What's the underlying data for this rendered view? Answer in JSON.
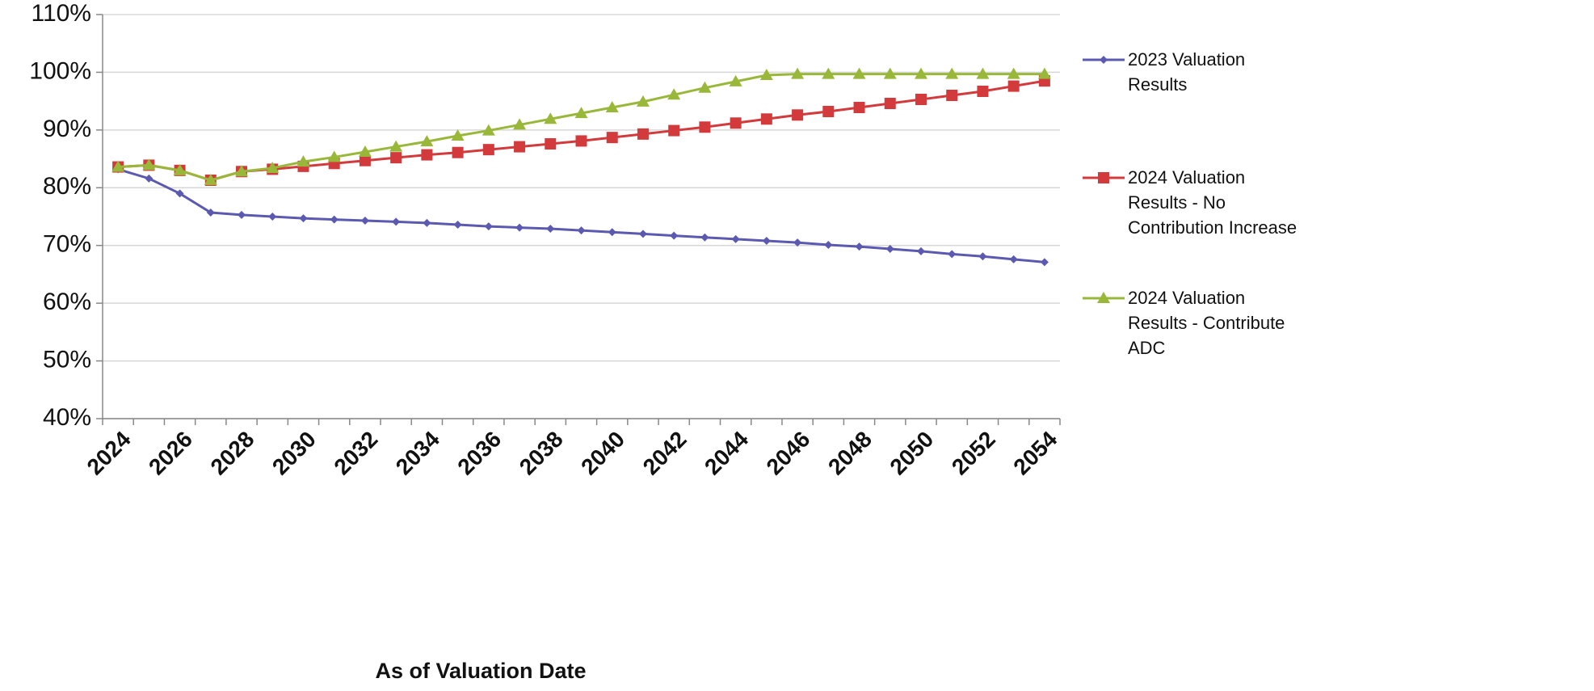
{
  "chart_data": {
    "type": "line",
    "x_label": "As of Valuation Date",
    "categories": [
      "2024",
      null,
      "2026",
      null,
      "2028",
      null,
      "2030",
      null,
      "2032",
      null,
      "2034",
      null,
      "2036",
      null,
      "2038",
      null,
      "2040",
      null,
      "2042",
      null,
      "2044",
      null,
      "2046",
      null,
      "2048",
      null,
      "2050",
      null,
      "2052",
      null,
      "2054"
    ],
    "series": [
      {
        "name": "2023 Valuation Results",
        "color": "#5b59b0",
        "marker": "diamond",
        "values": [
          83.2,
          81.6,
          79,
          75.7,
          75.3,
          75.0,
          74.7,
          74.5,
          74.3,
          74.1,
          73.9,
          73.6,
          73.3,
          73.1,
          72.9,
          72.6,
          72.3,
          72.0,
          71.7,
          71.4,
          71.1,
          70.8,
          70.5,
          70.1,
          69.8,
          69.4,
          69.0,
          68.5,
          68.1,
          67.6,
          67.1
        ]
      },
      {
        "name": "2024 Valuation Results - No Contribution Increase",
        "color": "#d23a3c",
        "marker": "square",
        "values": [
          83.6,
          83.9,
          83.0,
          81.3,
          82.8,
          83.2,
          83.7,
          84.2,
          84.7,
          85.2,
          85.7,
          86.1,
          86.6,
          87.1,
          87.6,
          88.1,
          88.7,
          89.3,
          89.9,
          90.5,
          91.2,
          91.9,
          92.6,
          93.2,
          93.9,
          94.6,
          95.3,
          96.0,
          96.7,
          97.6,
          98.5
        ]
      },
      {
        "name": "2024 Valuation Results - Contribute ADC",
        "color": "#99b83a",
        "marker": "triangle",
        "values": [
          83.6,
          83.9,
          83.0,
          81.3,
          82.8,
          83.4,
          84.5,
          85.3,
          86.2,
          87.1,
          88.0,
          89.0,
          89.9,
          90.9,
          91.9,
          92.9,
          93.9,
          94.9,
          96.1,
          97.3,
          98.4,
          99.5,
          99.7,
          99.7,
          99.7,
          99.7,
          99.7,
          99.7,
          99.7,
          99.7,
          99.7
        ]
      }
    ],
    "ylim": [
      40,
      110
    ],
    "yticks": [
      {
        "value": 40,
        "label": "40%"
      },
      {
        "value": 50,
        "label": "50%"
      },
      {
        "value": 60,
        "label": "60%"
      },
      {
        "value": 70,
        "label": "70%"
      },
      {
        "value": 80,
        "label": "80%"
      },
      {
        "value": 90,
        "label": "90%"
      },
      {
        "value": 100,
        "label": "100%"
      },
      {
        "value": 110,
        "label": "110%"
      }
    ],
    "grid": true,
    "legend": "right"
  }
}
